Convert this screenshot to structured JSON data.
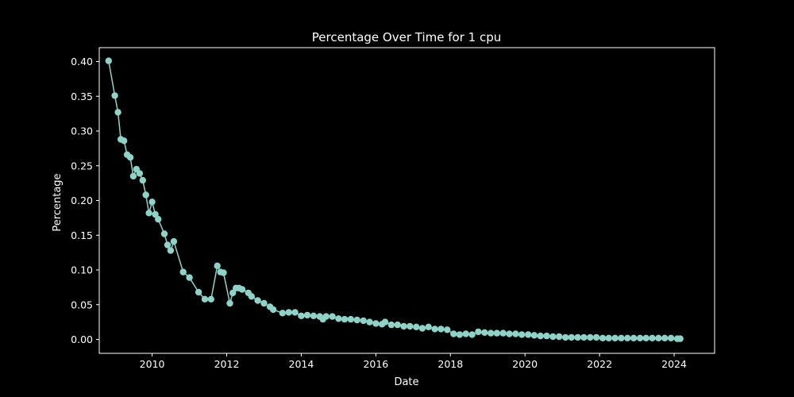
{
  "chart_data": {
    "type": "line",
    "title": "Percentage Over Time for 1 cpu",
    "xlabel": "Date",
    "ylabel": "Percentage",
    "x_scale": "date",
    "xlim": [
      "2008-08-01",
      "2025-02-01"
    ],
    "ylim": [
      -0.02,
      0.42
    ],
    "grid": false,
    "colors": {
      "background": "#000000",
      "axes": "#ffffff",
      "series": "#8dd3c7"
    },
    "xticks": [
      "2010",
      "2012",
      "2014",
      "2016",
      "2018",
      "2020",
      "2022",
      "2024"
    ],
    "yticks": [
      "0.00",
      "0.05",
      "0.10",
      "0.15",
      "0.20",
      "0.25",
      "0.30",
      "0.35",
      "0.40"
    ],
    "series": [
      {
        "marker": "circle",
        "points": [
          [
            "2008-11-01",
            0.401
          ],
          [
            "2009-01-01",
            0.351
          ],
          [
            "2009-02-01",
            0.327
          ],
          [
            "2009-03-01",
            0.288
          ],
          [
            "2009-04-01",
            0.286
          ],
          [
            "2009-05-01",
            0.266
          ],
          [
            "2009-06-01",
            0.262
          ],
          [
            "2009-07-01",
            0.235
          ],
          [
            "2009-08-01",
            0.245
          ],
          [
            "2009-09-01",
            0.239
          ],
          [
            "2009-10-01",
            0.229
          ],
          [
            "2009-11-01",
            0.208
          ],
          [
            "2009-12-01",
            0.182
          ],
          [
            "2010-01-01",
            0.198
          ],
          [
            "2010-02-01",
            0.18
          ],
          [
            "2010-03-01",
            0.173
          ],
          [
            "2010-05-01",
            0.152
          ],
          [
            "2010-06-01",
            0.136
          ],
          [
            "2010-07-01",
            0.128
          ],
          [
            "2010-08-01",
            0.141
          ],
          [
            "2010-11-01",
            0.097
          ],
          [
            "2011-01-01",
            0.089
          ],
          [
            "2011-04-01",
            0.068
          ],
          [
            "2011-06-01",
            0.058
          ],
          [
            "2011-08-01",
            0.058
          ],
          [
            "2011-10-01",
            0.106
          ],
          [
            "2011-11-01",
            0.097
          ],
          [
            "2011-12-01",
            0.096
          ],
          [
            "2012-02-01",
            0.052
          ],
          [
            "2012-03-01",
            0.067
          ],
          [
            "2012-04-01",
            0.074
          ],
          [
            "2012-05-01",
            0.074
          ],
          [
            "2012-06-01",
            0.072
          ],
          [
            "2012-08-01",
            0.067
          ],
          [
            "2012-09-01",
            0.062
          ],
          [
            "2012-11-01",
            0.056
          ],
          [
            "2013-01-01",
            0.052
          ],
          [
            "2013-03-01",
            0.047
          ],
          [
            "2013-04-01",
            0.043
          ],
          [
            "2013-07-01",
            0.038
          ],
          [
            "2013-09-01",
            0.039
          ],
          [
            "2013-11-01",
            0.039
          ],
          [
            "2014-01-01",
            0.034
          ],
          [
            "2014-03-01",
            0.035
          ],
          [
            "2014-05-01",
            0.034
          ],
          [
            "2014-07-01",
            0.033
          ],
          [
            "2014-08-01",
            0.029
          ],
          [
            "2014-09-01",
            0.033
          ],
          [
            "2014-11-01",
            0.033
          ],
          [
            "2015-01-01",
            0.03
          ],
          [
            "2015-03-01",
            0.029
          ],
          [
            "2015-05-01",
            0.029
          ],
          [
            "2015-07-01",
            0.028
          ],
          [
            "2015-09-01",
            0.027
          ],
          [
            "2015-11-01",
            0.025
          ],
          [
            "2016-01-01",
            0.023
          ],
          [
            "2016-03-01",
            0.022
          ],
          [
            "2016-04-01",
            0.025
          ],
          [
            "2016-06-01",
            0.021
          ],
          [
            "2016-08-01",
            0.021
          ],
          [
            "2016-10-01",
            0.019
          ],
          [
            "2016-12-01",
            0.019
          ],
          [
            "2017-02-01",
            0.018
          ],
          [
            "2017-04-01",
            0.016
          ],
          [
            "2017-06-01",
            0.018
          ],
          [
            "2017-08-01",
            0.015
          ],
          [
            "2017-10-01",
            0.015
          ],
          [
            "2017-12-01",
            0.014
          ],
          [
            "2018-02-01",
            0.008
          ],
          [
            "2018-04-01",
            0.007
          ],
          [
            "2018-06-01",
            0.008
          ],
          [
            "2018-08-01",
            0.007
          ],
          [
            "2018-10-01",
            0.011
          ],
          [
            "2018-12-01",
            0.01
          ],
          [
            "2019-02-01",
            0.009
          ],
          [
            "2019-04-01",
            0.009
          ],
          [
            "2019-06-01",
            0.009
          ],
          [
            "2019-08-01",
            0.008
          ],
          [
            "2019-10-01",
            0.008
          ],
          [
            "2019-12-01",
            0.007
          ],
          [
            "2020-02-01",
            0.007
          ],
          [
            "2020-04-01",
            0.006
          ],
          [
            "2020-06-01",
            0.005
          ],
          [
            "2020-08-01",
            0.005
          ],
          [
            "2020-10-01",
            0.004
          ],
          [
            "2020-12-01",
            0.004
          ],
          [
            "2021-02-01",
            0.003
          ],
          [
            "2021-04-01",
            0.003
          ],
          [
            "2021-06-01",
            0.003
          ],
          [
            "2021-08-01",
            0.003
          ],
          [
            "2021-10-01",
            0.003
          ],
          [
            "2021-12-01",
            0.003
          ],
          [
            "2022-02-01",
            0.002
          ],
          [
            "2022-04-01",
            0.002
          ],
          [
            "2022-06-01",
            0.002
          ],
          [
            "2022-08-01",
            0.002
          ],
          [
            "2022-10-01",
            0.002
          ],
          [
            "2022-12-01",
            0.002
          ],
          [
            "2023-02-01",
            0.002
          ],
          [
            "2023-04-01",
            0.002
          ],
          [
            "2023-06-01",
            0.002
          ],
          [
            "2023-08-01",
            0.002
          ],
          [
            "2023-10-01",
            0.002
          ],
          [
            "2023-12-01",
            0.002
          ],
          [
            "2024-02-01",
            0.001
          ],
          [
            "2024-03-01",
            0.001
          ]
        ]
      }
    ]
  }
}
